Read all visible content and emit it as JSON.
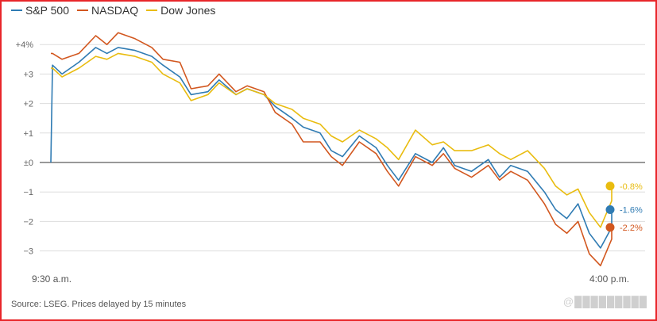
{
  "legend": [
    {
      "label": "S&P 500",
      "color": "#2f7bb3"
    },
    {
      "label": "NASDAQ",
      "color": "#d2571f"
    },
    {
      "label": "Dow Jones",
      "color": "#e9bc0f"
    }
  ],
  "source": "Source: LSEG. Prices delayed by 15 minutes",
  "watermark": "@█████████",
  "chart_data": {
    "type": "line",
    "title": "",
    "xlabel": "",
    "ylabel": "",
    "ylim": [
      -3.6,
      4.6
    ],
    "yticks": [
      {
        "value": 4,
        "label": "+4%"
      },
      {
        "value": 3,
        "label": "+3"
      },
      {
        "value": 2,
        "label": "+2"
      },
      {
        "value": 1,
        "label": "+1"
      },
      {
        "value": 0,
        "label": "±0"
      },
      {
        "value": -1,
        "label": "−1"
      },
      {
        "value": -2,
        "label": "−2"
      },
      {
        "value": -3,
        "label": "−3"
      }
    ],
    "x_start_label": "9:30 a.m.",
    "x_end_label": "4:00 p.m.",
    "x_unit": "fraction of trading session (0 = 9:30 a.m., 1 = 4:00 p.m.)",
    "grid": true,
    "legend_position": "top-left",
    "series": [
      {
        "name": "S&P 500",
        "color": "#2f7bb3",
        "end_label": "-1.6%",
        "x": [
          0,
          0.003,
          0.02,
          0.05,
          0.08,
          0.1,
          0.12,
          0.15,
          0.18,
          0.2,
          0.23,
          0.25,
          0.28,
          0.3,
          0.33,
          0.35,
          0.38,
          0.4,
          0.43,
          0.45,
          0.48,
          0.5,
          0.52,
          0.55,
          0.58,
          0.6,
          0.62,
          0.65,
          0.68,
          0.7,
          0.72,
          0.75,
          0.78,
          0.8,
          0.82,
          0.85,
          0.88,
          0.9,
          0.92,
          0.94,
          0.96,
          0.98,
          1.0,
          1.03
        ],
        "y": [
          0.0,
          3.3,
          3.0,
          3.4,
          3.9,
          3.7,
          3.9,
          3.8,
          3.6,
          3.3,
          2.9,
          2.3,
          2.4,
          2.8,
          2.3,
          2.5,
          2.3,
          1.9,
          1.5,
          1.2,
          1.0,
          0.4,
          0.2,
          0.9,
          0.5,
          -0.1,
          -0.6,
          0.3,
          0.0,
          0.5,
          -0.1,
          -0.3,
          0.1,
          -0.5,
          -0.1,
          -0.3,
          -1.0,
          -1.6,
          -1.9,
          -1.4,
          -2.4,
          -2.9,
          -2.2,
          -1.6
        ]
      },
      {
        "name": "NASDAQ",
        "color": "#d2571f",
        "end_label": "-2.2%",
        "x": [
          0,
          0.003,
          0.02,
          0.05,
          0.08,
          0.1,
          0.12,
          0.15,
          0.18,
          0.2,
          0.23,
          0.25,
          0.28,
          0.3,
          0.33,
          0.35,
          0.38,
          0.4,
          0.43,
          0.45,
          0.48,
          0.5,
          0.52,
          0.55,
          0.58,
          0.6,
          0.62,
          0.65,
          0.68,
          0.7,
          0.72,
          0.75,
          0.78,
          0.8,
          0.82,
          0.85,
          0.88,
          0.9,
          0.92,
          0.94,
          0.96,
          0.98,
          1.0,
          1.03
        ],
        "y": [
          3.7,
          3.7,
          3.5,
          3.7,
          4.3,
          4.0,
          4.4,
          4.2,
          3.9,
          3.5,
          3.4,
          2.5,
          2.6,
          3.0,
          2.4,
          2.6,
          2.4,
          1.7,
          1.3,
          0.7,
          0.7,
          0.2,
          -0.1,
          0.7,
          0.3,
          -0.3,
          -0.8,
          0.2,
          -0.1,
          0.3,
          -0.2,
          -0.5,
          -0.1,
          -0.6,
          -0.3,
          -0.6,
          -1.4,
          -2.1,
          -2.4,
          -2.0,
          -3.1,
          -3.5,
          -2.6,
          -2.2
        ]
      },
      {
        "name": "Dow Jones",
        "color": "#e9bc0f",
        "end_label": "-0.8%",
        "x": [
          0,
          0.003,
          0.02,
          0.05,
          0.08,
          0.1,
          0.12,
          0.15,
          0.18,
          0.2,
          0.23,
          0.25,
          0.28,
          0.3,
          0.33,
          0.35,
          0.38,
          0.4,
          0.43,
          0.45,
          0.48,
          0.5,
          0.52,
          0.55,
          0.58,
          0.6,
          0.62,
          0.65,
          0.68,
          0.7,
          0.72,
          0.75,
          0.78,
          0.8,
          0.82,
          0.85,
          0.88,
          0.9,
          0.92,
          0.94,
          0.96,
          0.98,
          1.0,
          1.03
        ],
        "y": [
          3.2,
          3.2,
          2.9,
          3.2,
          3.6,
          3.5,
          3.7,
          3.6,
          3.4,
          3.0,
          2.7,
          2.1,
          2.3,
          2.7,
          2.3,
          2.5,
          2.3,
          2.0,
          1.8,
          1.5,
          1.3,
          0.9,
          0.7,
          1.1,
          0.8,
          0.5,
          0.1,
          1.1,
          0.6,
          0.7,
          0.4,
          0.4,
          0.6,
          0.3,
          0.1,
          0.4,
          -0.2,
          -0.8,
          -1.1,
          -0.9,
          -1.7,
          -2.2,
          -1.3,
          -0.8
        ]
      }
    ]
  }
}
